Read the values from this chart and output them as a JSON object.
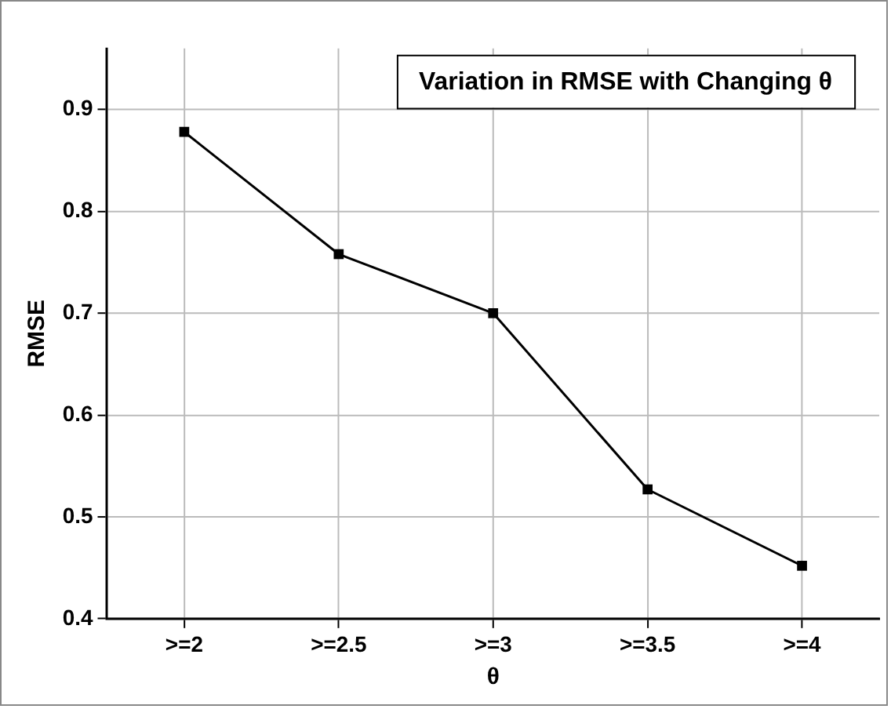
{
  "chart_data": {
    "type": "line",
    "title": "Variation in RMSE with Changing θ",
    "xlabel": "θ",
    "ylabel": "RMSE",
    "categories": [
      ">=2",
      ">=2.5",
      ">=3",
      ">=3.5",
      ">=4"
    ],
    "series": [
      {
        "color": "#000000",
        "values": [
          0.878,
          0.758,
          0.7,
          0.527,
          0.452
        ]
      }
    ],
    "ylim": [
      0.4,
      0.96
    ],
    "yticks": [
      0.4,
      0.5,
      0.6,
      0.7,
      0.8,
      0.9
    ],
    "grid": true,
    "marker": "square",
    "line_style": "solid",
    "legend": false
  }
}
